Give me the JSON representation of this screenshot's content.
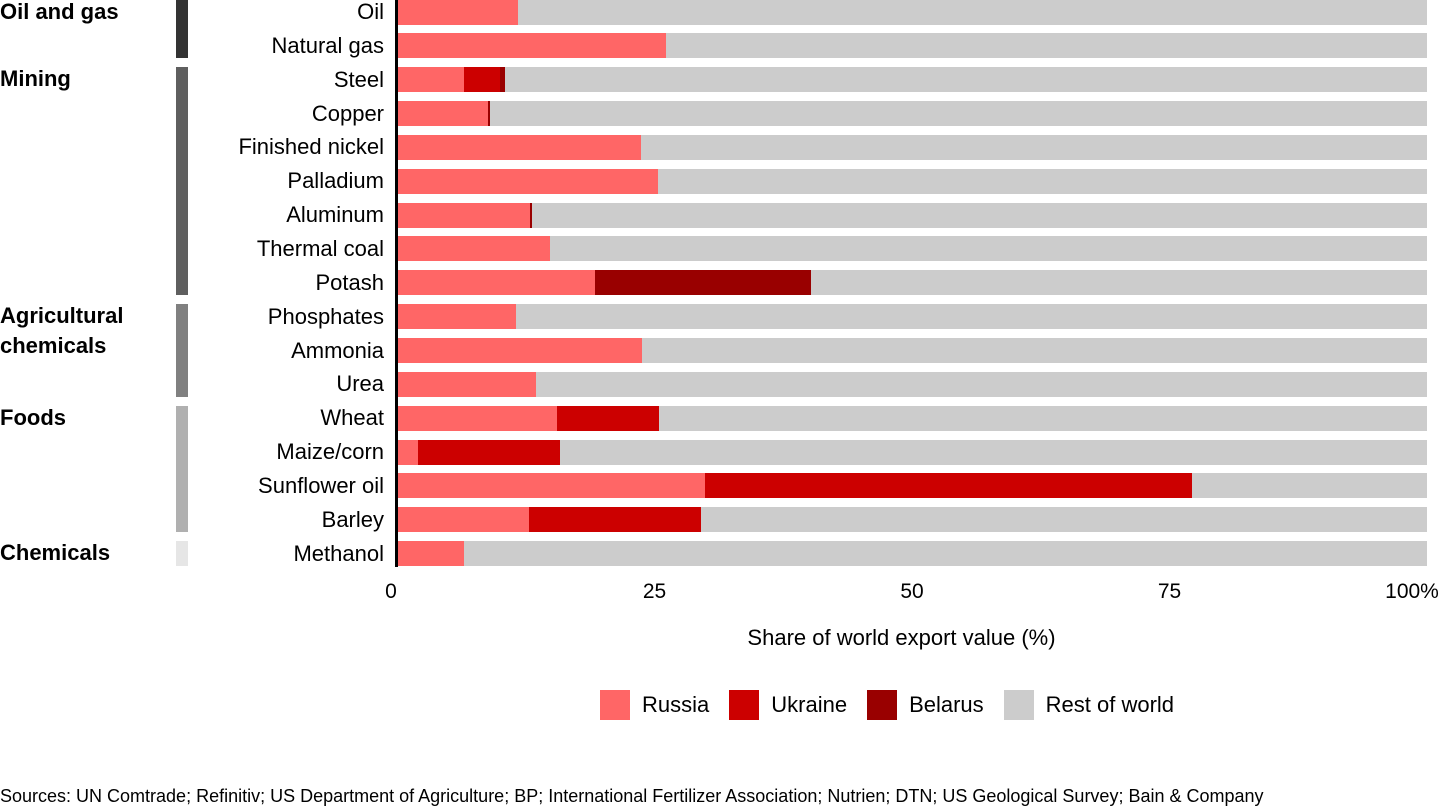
{
  "chart_data": {
    "type": "bar",
    "orientation": "horizontal",
    "stacked": true,
    "xlabel": "Share of world export value (%)",
    "xlim": [
      0,
      100
    ],
    "xticks": [
      "0",
      "25",
      "50",
      "75",
      "100%"
    ],
    "legend_position": "bottom",
    "groups": [
      {
        "name": "Oil and gas",
        "color": "#333333",
        "categories": [
          "Oil",
          "Natural gas"
        ]
      },
      {
        "name": "Mining",
        "color": "#5f5f5f",
        "categories": [
          "Steel",
          "Copper",
          "Finished nickel",
          "Palladium",
          "Aluminum",
          "Thermal coal",
          "Potash"
        ]
      },
      {
        "name": "Agricultural chemicals",
        "color": "#808080",
        "categories": [
          "Phosphates",
          "Ammonia",
          "Urea"
        ]
      },
      {
        "name": "Foods",
        "color": "#b0b0b0",
        "categories": [
          "Wheat",
          "Maize/corn",
          "Sunflower oil",
          "Barley"
        ]
      },
      {
        "name": "Chemicals",
        "color": "#e6e6e6",
        "categories": [
          "Methanol"
        ]
      }
    ],
    "categories": [
      "Oil",
      "Natural gas",
      "Steel",
      "Copper",
      "Finished nickel",
      "Palladium",
      "Aluminum",
      "Thermal coal",
      "Potash",
      "Phosphates",
      "Ammonia",
      "Urea",
      "Wheat",
      "Maize/corn",
      "Sunflower oil",
      "Barley",
      "Methanol"
    ],
    "series": [
      {
        "name": "Russia",
        "color": "#ff6666",
        "values": [
          11.7,
          26.1,
          6.5,
          8.8,
          23.7,
          25.3,
          12.9,
          14.9,
          19.2,
          11.6,
          23.8,
          13.5,
          15.5,
          2.0,
          29.9,
          12.8,
          6.5
        ]
      },
      {
        "name": "Ukraine",
        "color": "#cc0000",
        "values": [
          0,
          0,
          3.5,
          0,
          0,
          0,
          0,
          0,
          0,
          0,
          0,
          0,
          9.9,
          13.8,
          47.3,
          16.7,
          0
        ]
      },
      {
        "name": "Belarus",
        "color": "#990000",
        "values": [
          0,
          0,
          0.5,
          0.2,
          0,
          0,
          0.2,
          0,
          21.0,
          0,
          0,
          0,
          0,
          0,
          0,
          0,
          0
        ]
      },
      {
        "name": "Rest of world",
        "color": "#cccccc",
        "values": "remainder to 100"
      }
    ]
  },
  "source": "Sources: UN Comtrade; Refinitiv; US Department of Agriculture; BP; International Fertilizer Association; Nutrien; DTN; US Geological Survey; Bain & Company"
}
